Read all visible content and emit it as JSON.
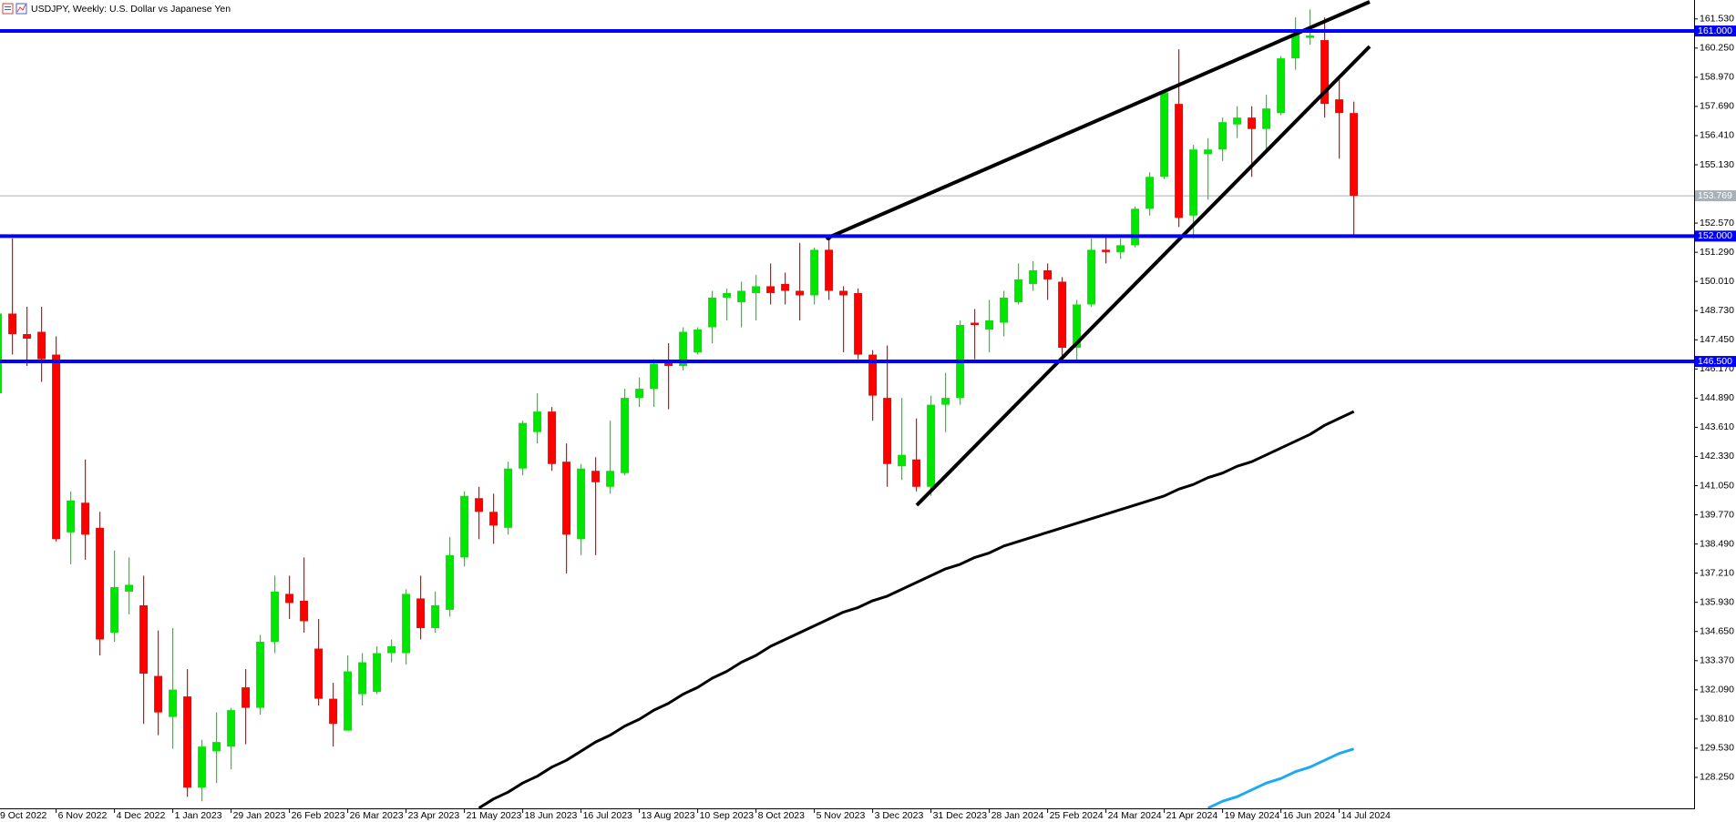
{
  "chart_data": {
    "type": "candlestick",
    "title": "USDJPY, Weekly:  U.S. Dollar vs Japanese Yen",
    "categories": [
      "9 Oct 2022",
      null,
      null,
      null,
      "6 Nov 2022",
      null,
      null,
      null,
      "4 Dec 2022",
      null,
      null,
      null,
      "1 Jan 2023",
      null,
      null,
      null,
      "29 Jan 2023",
      null,
      null,
      null,
      "26 Feb 2023",
      null,
      null,
      null,
      "26 Mar 2023",
      null,
      null,
      null,
      "23 Apr 2023",
      null,
      null,
      null,
      "21 May 2023",
      null,
      null,
      null,
      "18 Jun 2023",
      null,
      null,
      null,
      "16 Jul 2023",
      null,
      null,
      null,
      "13 Aug 2023",
      null,
      null,
      null,
      "10 Sep 2023",
      null,
      null,
      null,
      "8 Oct 2023",
      null,
      null,
      null,
      "5 Nov 2023",
      null,
      null,
      null,
      "3 Dec 2023",
      null,
      null,
      null,
      "31 Dec 2023",
      null,
      null,
      null,
      "28 Jan 2024",
      null,
      null,
      null,
      "25 Feb 2024",
      null,
      null,
      null,
      "24 Mar 2024",
      null,
      null,
      null,
      "21 Apr 2024",
      null,
      null,
      null,
      "19 May 2024",
      null,
      null,
      null,
      "16 Jun 2024",
      null,
      null,
      null,
      "14 Jul 2024",
      null
    ],
    "open": [
      145.1,
      148.6,
      147.7,
      147.8,
      146.8,
      139.0,
      140.3,
      139.2,
      134.6,
      136.4,
      135.8,
      132.7,
      130.9,
      131.8,
      127.8,
      129.4,
      129.6,
      132.2,
      131.3,
      134.2,
      136.3,
      136.0,
      133.9,
      131.7,
      130.3,
      131.9,
      132.0,
      133.7,
      133.7,
      136.1,
      134.8,
      135.6,
      137.9,
      140.5,
      139.9,
      139.2,
      141.8,
      143.4,
      144.3,
      142.1,
      138.7,
      141.7,
      141.0,
      141.6,
      144.9,
      145.3,
      146.5,
      146.3,
      146.9,
      148.0,
      149.3,
      149.1,
      149.5,
      149.8,
      149.9,
      149.6,
      149.4,
      151.4,
      149.6,
      149.5,
      146.8,
      144.9,
      141.9,
      142.2,
      141.0,
      144.6,
      144.9,
      148.2,
      147.9,
      148.2,
      149.1,
      149.9,
      150.5,
      150.0,
      147.1,
      149.0,
      151.4,
      151.3,
      151.6,
      153.2,
      154.6,
      157.8,
      152.9,
      155.6,
      155.8,
      156.9,
      157.2,
      156.7,
      157.4,
      159.8,
      160.7,
      160.6,
      158.0,
      157.4
    ],
    "high": [
      149.2,
      151.9,
      148.9,
      148.9,
      147.6,
      140.8,
      142.2,
      139.9,
      138.2,
      137.9,
      137.1,
      134.7,
      134.8,
      133.0,
      129.9,
      131.1,
      131.3,
      133.0,
      134.5,
      137.1,
      137.1,
      137.9,
      135.2,
      132.4,
      133.6,
      133.7,
      134.0,
      134.3,
      136.5,
      137.1,
      136.4,
      138.8,
      140.8,
      141.0,
      140.7,
      142.1,
      143.9,
      145.1,
      144.5,
      142.9,
      142.0,
      142.3,
      143.9,
      145.3,
      145.8,
      146.6,
      147.3,
      148.0,
      148.0,
      149.6,
      149.7,
      150.0,
      150.3,
      150.8,
      150.4,
      151.7,
      151.5,
      152.0,
      149.8,
      149.7,
      147.0,
      147.2,
      144.9,
      144.0,
      145.0,
      146.0,
      148.3,
      148.8,
      149.2,
      149.6,
      150.8,
      150.9,
      150.8,
      150.2,
      149.2,
      151.9,
      152.0,
      151.9,
      153.3,
      154.8,
      158.4,
      160.2,
      156.0,
      156.3,
      157.2,
      157.7,
      157.7,
      158.2,
      159.9,
      161.6,
      161.95,
      161.6,
      159.0,
      157.9
    ],
    "low": [
      144.9,
      146.8,
      146.3,
      145.6,
      138.6,
      137.6,
      137.8,
      133.6,
      134.2,
      135.4,
      130.6,
      130.1,
      129.5,
      127.4,
      127.2,
      128.0,
      128.6,
      129.7,
      131.0,
      133.7,
      135.2,
      134.6,
      131.4,
      129.6,
      130.3,
      131.4,
      131.9,
      133.3,
      133.2,
      134.3,
      134.6,
      135.3,
      137.5,
      138.7,
      138.5,
      138.9,
      141.5,
      142.9,
      141.7,
      137.2,
      138.0,
      138.0,
      140.7,
      141.5,
      144.5,
      144.5,
      144.4,
      146.1,
      146.8,
      147.3,
      148.3,
      148.0,
      148.3,
      149.0,
      149.0,
      148.3,
      149.0,
      149.2,
      146.9,
      146.6,
      143.9,
      141.0,
      141.3,
      140.8,
      140.6,
      143.4,
      144.6,
      146.6,
      146.9,
      147.6,
      149.0,
      149.6,
      149.2,
      146.5,
      146.5,
      148.9,
      150.8,
      151.0,
      151.5,
      152.9,
      154.5,
      152.4,
      151.9,
      153.6,
      155.3,
      156.3,
      154.6,
      155.7,
      157.3,
      159.3,
      160.4,
      157.2,
      155.4,
      151.95
    ],
    "close": [
      148.6,
      147.7,
      147.5,
      146.6,
      138.7,
      140.4,
      138.9,
      134.3,
      136.6,
      136.7,
      132.8,
      131.1,
      132.1,
      127.8,
      129.6,
      129.8,
      131.2,
      131.3,
      134.2,
      136.4,
      135.9,
      135.1,
      131.7,
      130.6,
      132.9,
      133.3,
      133.7,
      134.0,
      136.3,
      134.8,
      135.8,
      138.0,
      140.6,
      139.9,
      139.3,
      141.8,
      143.8,
      144.3,
      142.0,
      138.9,
      141.8,
      141.2,
      141.7,
      144.9,
      145.3,
      146.4,
      146.3,
      147.8,
      147.9,
      149.3,
      149.5,
      149.6,
      149.8,
      149.5,
      149.6,
      149.4,
      151.4,
      149.6,
      149.4,
      146.8,
      145.0,
      142.0,
      142.4,
      141.0,
      144.6,
      144.9,
      148.1,
      148.1,
      148.3,
      149.3,
      150.1,
      150.5,
      150.1,
      147.1,
      149.0,
      151.4,
      151.3,
      151.6,
      153.2,
      154.6,
      158.3,
      152.8,
      155.8,
      155.8,
      157.0,
      157.2,
      156.7,
      157.6,
      159.8,
      160.9,
      160.8,
      157.8,
      157.4,
      153.769
    ],
    "up_color": "#00e600",
    "down_color": "#ff0000",
    "moving_averages": [
      {
        "color": "#000000",
        "values": [
          null,
          null,
          null,
          null,
          null,
          null,
          null,
          null,
          null,
          null,
          null,
          null,
          null,
          null,
          null,
          null,
          null,
          null,
          null,
          null,
          null,
          null,
          null,
          null,
          null,
          null,
          null,
          null,
          null,
          null,
          null,
          null,
          null,
          126.9,
          127.3,
          127.6,
          128.0,
          128.3,
          128.7,
          129.0,
          129.4,
          129.8,
          130.1,
          130.5,
          130.8,
          131.2,
          131.5,
          131.9,
          132.2,
          132.6,
          132.9,
          133.3,
          133.6,
          134.0,
          134.3,
          134.6,
          134.9,
          135.2,
          135.5,
          135.7,
          136.0,
          136.2,
          136.5,
          136.8,
          137.1,
          137.4,
          137.6,
          137.9,
          138.1,
          138.4,
          138.6,
          138.8,
          139.0,
          139.2,
          139.4,
          139.6,
          139.8,
          140.0,
          140.2,
          140.4,
          140.6,
          140.9,
          141.1,
          141.4,
          141.6,
          141.9,
          142.1,
          142.4,
          142.7,
          143.0,
          143.3,
          143.7,
          144.0,
          144.3
        ]
      },
      {
        "color": "#1eaaf0",
        "values": [
          null,
          null,
          null,
          null,
          null,
          null,
          null,
          null,
          null,
          null,
          null,
          null,
          null,
          null,
          null,
          null,
          null,
          null,
          null,
          null,
          null,
          null,
          null,
          null,
          null,
          null,
          null,
          null,
          null,
          null,
          null,
          null,
          null,
          null,
          null,
          null,
          null,
          null,
          null,
          null,
          null,
          null,
          null,
          null,
          null,
          null,
          null,
          null,
          null,
          null,
          null,
          null,
          null,
          null,
          null,
          null,
          null,
          null,
          null,
          null,
          null,
          null,
          null,
          null,
          null,
          null,
          null,
          null,
          null,
          null,
          null,
          null,
          null,
          null,
          null,
          null,
          null,
          null,
          null,
          null,
          null,
          null,
          null,
          126.9,
          127.2,
          127.4,
          127.7,
          128.0,
          128.2,
          128.5,
          128.7,
          129.0,
          129.3,
          129.5
        ]
      }
    ],
    "levels": [
      {
        "value": 161,
        "label": "161.000"
      },
      {
        "value": 152,
        "label": "152.000"
      },
      {
        "value": 146.5,
        "label": "146.500"
      }
    ],
    "level_color": "#0000ff",
    "last_price": {
      "value": 153.769,
      "label": "153.769"
    },
    "ylim": [
      126.89,
      162.36
    ],
    "yticks": [
      {
        "value": 161.53,
        "label": "161.530"
      },
      {
        "value": 160.25,
        "label": "160.250"
      },
      {
        "value": 158.97,
        "label": "158.970"
      },
      {
        "value": 157.69,
        "label": "157.690"
      },
      {
        "value": 156.41,
        "label": "156.410"
      },
      {
        "value": 155.13,
        "label": "155.130"
      },
      {
        "value": 152.57,
        "label": "152.570"
      },
      {
        "value": 151.29,
        "label": "151.290"
      },
      {
        "value": 150.01,
        "label": "150.010"
      },
      {
        "value": 148.73,
        "label": "148.730"
      },
      {
        "value": 147.45,
        "label": "147.450"
      },
      {
        "value": 146.17,
        "label": "146.170"
      },
      {
        "value": 144.89,
        "label": "144.890"
      },
      {
        "value": 143.61,
        "label": "143.610"
      },
      {
        "value": 142.33,
        "label": "142.330"
      },
      {
        "value": 141.05,
        "label": "141.050"
      },
      {
        "value": 139.77,
        "label": "139.770"
      },
      {
        "value": 138.49,
        "label": "138.490"
      },
      {
        "value": 137.21,
        "label": "137.210"
      },
      {
        "value": 135.93,
        "label": "135.930"
      },
      {
        "value": 134.65,
        "label": "134.650"
      },
      {
        "value": 133.37,
        "label": "133.370"
      },
      {
        "value": 132.09,
        "label": "132.090"
      },
      {
        "value": 130.81,
        "label": "130.810"
      },
      {
        "value": 129.53,
        "label": "129.530"
      },
      {
        "value": 128.25,
        "label": "128.250"
      }
    ],
    "grid": false
  }
}
